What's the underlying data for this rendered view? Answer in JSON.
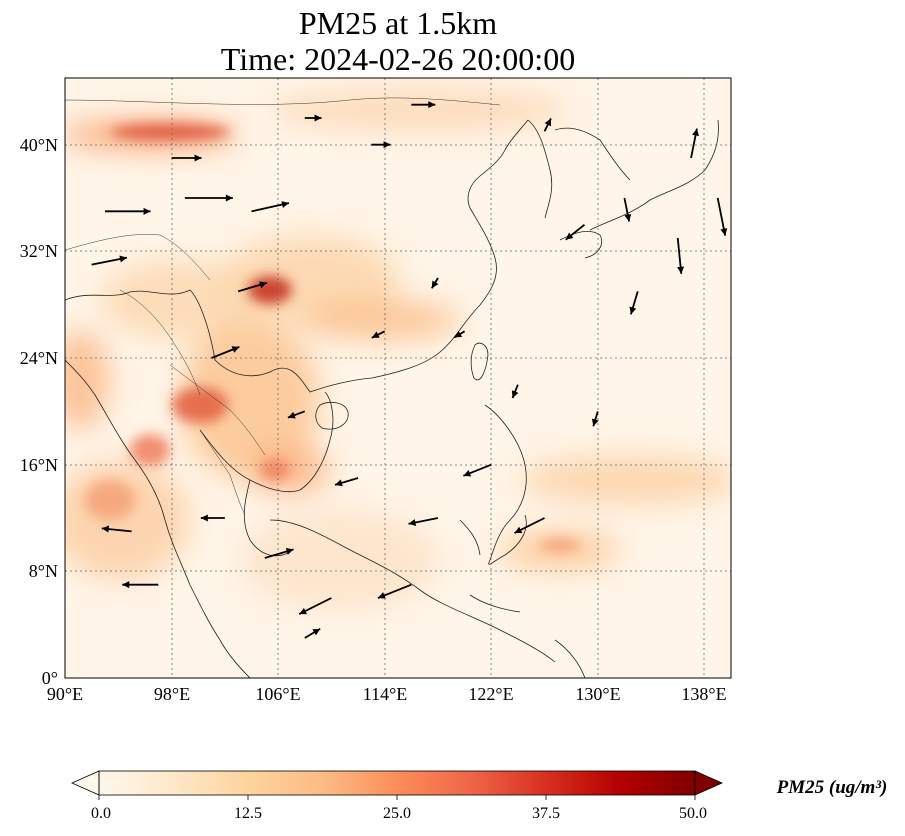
{
  "figure": {
    "title_line1": "PM25 at 1.5km",
    "title_line2": "Time: 2024-02-26 20:00:00"
  },
  "colorbar": {
    "label": "PM25 (ug/m³)",
    "colormap": "OrRd",
    "ticks": [
      "0.0",
      "12.5",
      "25.0",
      "37.5",
      "50.0"
    ],
    "extend": "both",
    "stops": [
      "#fff7ec",
      "#fee8c8",
      "#fdd49e",
      "#fdbb84",
      "#fc8d59",
      "#ef6548",
      "#d7301f",
      "#b30000",
      "#7f0000"
    ]
  },
  "chart_data": {
    "type": "heatmap",
    "title": "PM25 at 1.5km\nTime: 2024-02-26 20:00:00",
    "xlim": [
      90,
      140
    ],
    "ylim": [
      0,
      45
    ],
    "x_ticks": [
      "90°E",
      "98°E",
      "106°E",
      "114°E",
      "122°E",
      "130°E",
      "138°E"
    ],
    "y_ticks": [
      "0°",
      "8°N",
      "16°N",
      "24°N",
      "32°N",
      "40°N"
    ],
    "x_tick_values": [
      90,
      98,
      106,
      114,
      122,
      130,
      138
    ],
    "y_tick_values": [
      0,
      8,
      16,
      24,
      32,
      40
    ],
    "grid": true,
    "value_range": [
      0,
      50
    ],
    "hotspots": [
      {
        "lon": 99,
        "lat": 40.5,
        "value": 35
      },
      {
        "lon": 106.5,
        "lat": 29.5,
        "value": 40
      },
      {
        "lon": 101.5,
        "lat": 20.5,
        "value": 32
      },
      {
        "lon": 98,
        "lat": 17,
        "value": 28
      },
      {
        "lon": 106,
        "lat": 16,
        "value": 24
      },
      {
        "lon": 110,
        "lat": 25,
        "value": 18
      },
      {
        "lon": 113,
        "lat": 27,
        "value": 18
      },
      {
        "lon": 94,
        "lat": 14,
        "value": 20
      },
      {
        "lon": 112,
        "lat": 12,
        "value": 14
      },
      {
        "lon": 120,
        "lat": 43,
        "value": 14
      },
      {
        "lon": 134,
        "lat": 17,
        "value": 14
      },
      {
        "lon": 127,
        "lat": 10,
        "value": 18
      },
      {
        "lon": 96,
        "lat": 24,
        "value": 16
      }
    ],
    "wind_vectors": [
      {
        "lon": 93,
        "lat": 35,
        "u": 1,
        "v": 0,
        "speed": 3.8
      },
      {
        "lon": 99,
        "lat": 36,
        "u": 1,
        "v": 0,
        "speed": 4.0
      },
      {
        "lon": 104,
        "lat": 35,
        "u": 0.9,
        "v": 0.2,
        "speed": 3.2
      },
      {
        "lon": 92,
        "lat": 31,
        "u": 1,
        "v": 0.2,
        "speed": 3.0
      },
      {
        "lon": 98,
        "lat": 39,
        "u": 1,
        "v": 0,
        "speed": 2.5
      },
      {
        "lon": 103,
        "lat": 29,
        "u": 1,
        "v": 0.3,
        "speed": 2.5
      },
      {
        "lon": 101,
        "lat": 24,
        "u": 1,
        "v": 0.4,
        "speed": 2.5
      },
      {
        "lon": 108,
        "lat": 20,
        "u": -0.8,
        "v": -0.3,
        "speed": 1.5
      },
      {
        "lon": 112,
        "lat": 15,
        "u": -1,
        "v": -0.3,
        "speed": 2.0
      },
      {
        "lon": 118,
        "lat": 12,
        "u": -1,
        "v": -0.2,
        "speed": 2.5
      },
      {
        "lon": 122,
        "lat": 16,
        "u": -1,
        "v": -0.4,
        "speed": 2.5
      },
      {
        "lon": 126,
        "lat": 12,
        "u": -1,
        "v": -0.5,
        "speed": 2.8
      },
      {
        "lon": 116,
        "lat": 7,
        "u": -1,
        "v": -0.4,
        "speed": 3.0
      },
      {
        "lon": 110,
        "lat": 6,
        "u": -1,
        "v": -0.5,
        "speed": 3.0
      },
      {
        "lon": 97,
        "lat": 7,
        "u": -1,
        "v": 0,
        "speed": 3.0
      },
      {
        "lon": 95,
        "lat": 11,
        "u": -1,
        "v": 0.1,
        "speed": 2.5
      },
      {
        "lon": 124,
        "lat": 22,
        "u": -0.4,
        "v": -1,
        "speed": 1.2
      },
      {
        "lon": 130,
        "lat": 20,
        "u": -0.3,
        "v": -1,
        "speed": 1.3
      },
      {
        "lon": 133,
        "lat": 29,
        "u": -0.3,
        "v": -1,
        "speed": 2.0
      },
      {
        "lon": 136,
        "lat": 33,
        "u": 0.1,
        "v": -1,
        "speed": 3.0
      },
      {
        "lon": 139,
        "lat": 36,
        "u": 0.2,
        "v": -1,
        "speed": 3.2
      },
      {
        "lon": 137,
        "lat": 39,
        "u": 0.2,
        "v": 1,
        "speed": 2.5
      },
      {
        "lon": 132,
        "lat": 36,
        "u": 0.2,
        "v": -1,
        "speed": 2.0
      },
      {
        "lon": 129,
        "lat": 34,
        "u": -1,
        "v": -0.8,
        "speed": 2.0
      },
      {
        "lon": 126,
        "lat": 41,
        "u": 0.5,
        "v": 1,
        "speed": 1.2
      },
      {
        "lon": 116,
        "lat": 43,
        "u": 1,
        "v": 0,
        "speed": 2.0
      },
      {
        "lon": 113,
        "lat": 40,
        "u": 1,
        "v": 0,
        "speed": 1.6
      },
      {
        "lon": 108,
        "lat": 42,
        "u": 1,
        "v": 0,
        "speed": 1.4
      },
      {
        "lon": 118,
        "lat": 30,
        "u": -0.6,
        "v": -1,
        "speed": 1.0
      },
      {
        "lon": 114,
        "lat": 26,
        "u": -1,
        "v": -0.5,
        "speed": 1.2
      },
      {
        "lon": 120,
        "lat": 26,
        "u": -1,
        "v": -0.6,
        "speed": 1.0
      },
      {
        "lon": 102,
        "lat": 12,
        "u": -1,
        "v": 0,
        "speed": 2.0
      },
      {
        "lon": 105,
        "lat": 9,
        "u": 1,
        "v": 0.3,
        "speed": 2.5
      },
      {
        "lon": 108,
        "lat": 3,
        "u": 1,
        "v": 0.6,
        "speed": 1.5
      }
    ]
  }
}
